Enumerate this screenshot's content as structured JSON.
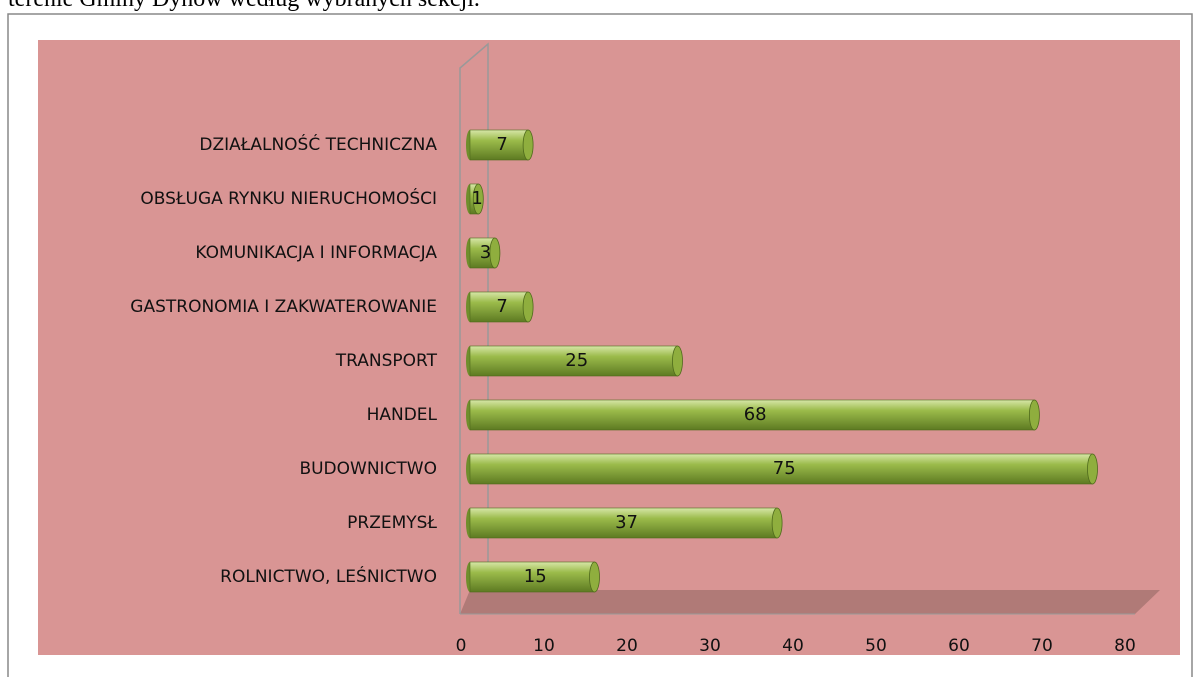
{
  "caption": "terenie Gminy Dynów według wybranych sekcji.",
  "chart_data": {
    "type": "bar",
    "orientation": "horizontal",
    "categories": [
      "ROLNICTWO, LEŚNICTWO",
      "PRZEMYSŁ",
      "BUDOWNICTWO",
      "HANDEL",
      "TRANSPORT",
      "GASTRONOMIA I ZAKWATEROWANIE",
      "KOMUNIKACJA I INFORMACJA",
      "OBSŁUGA RYNKU NIERUCHOMOŚCI",
      "DZIAŁALNOŚĆ TECHNICZNA"
    ],
    "values": [
      15,
      37,
      75,
      68,
      25,
      7,
      3,
      1,
      7
    ],
    "color": "#8fae3e",
    "background": "#d99594",
    "xlim": [
      0,
      80
    ],
    "xticks": [
      0,
      10,
      20,
      30,
      40,
      50,
      60,
      70,
      80
    ],
    "grid": false
  }
}
